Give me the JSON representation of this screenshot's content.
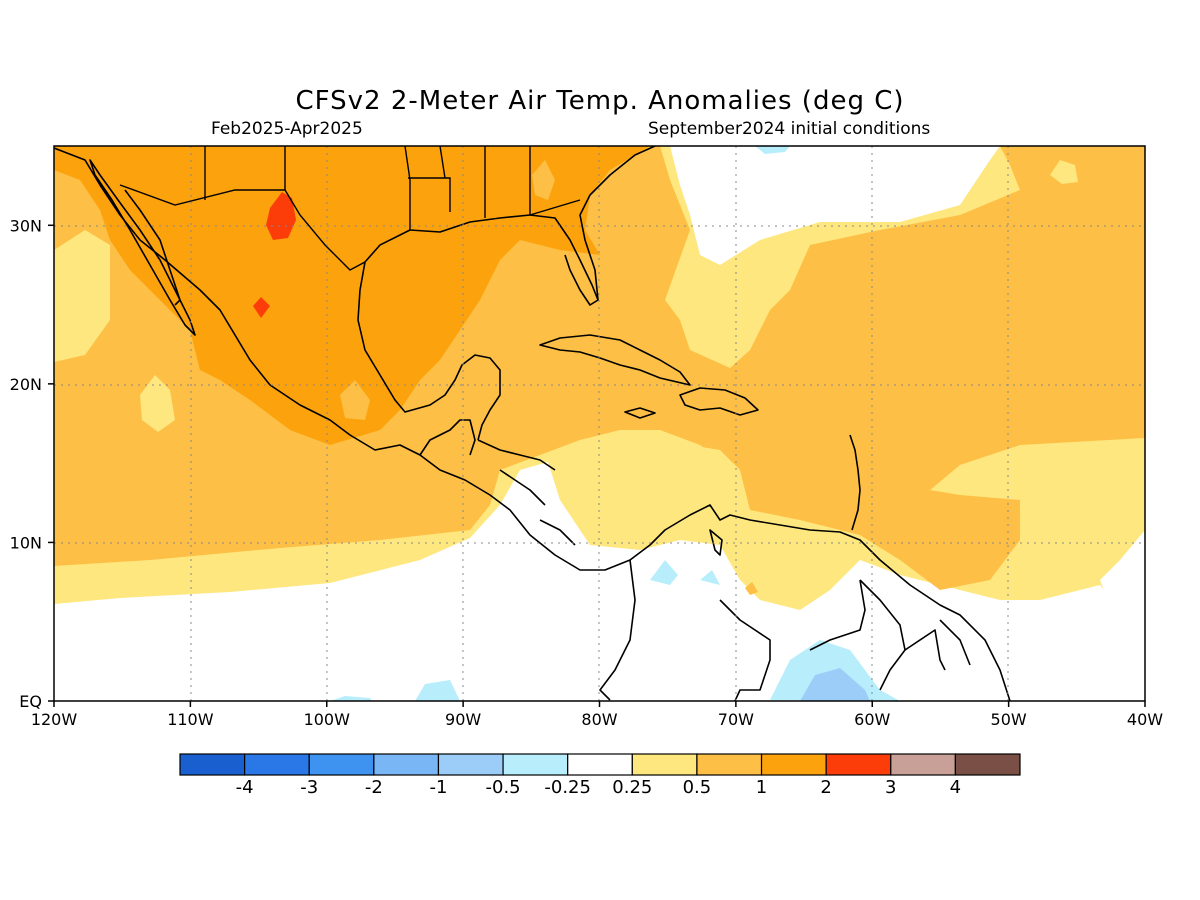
{
  "title": "CFSv2 2-Meter Air Temp. Anomalies (deg C)",
  "period": "Feb2025-Apr2025",
  "initial_conditions": "September2024 initial conditions",
  "lon_labels": [
    "120W",
    "110W",
    "100W",
    "90W",
    "80W",
    "70W",
    "60W",
    "50W",
    "40W"
  ],
  "lat_labels": [
    "EQ",
    "10N",
    "20N",
    "30N"
  ],
  "colorbar": {
    "colors": [
      "#1a5fd0",
      "#2a78e8",
      "#3f93f0",
      "#78b6f5",
      "#9ccdf8",
      "#b8eefc",
      "#ffffff",
      "#fee77e",
      "#fdbf45",
      "#fca20c",
      "#fc3d0a",
      "#c8a097",
      "#7a4f45"
    ],
    "labels": [
      "-4",
      "-3",
      "-2",
      "-1",
      "-0.5",
      "-0.25",
      "0.25",
      "0.5",
      "1",
      "2",
      "3",
      "4"
    ]
  }
}
